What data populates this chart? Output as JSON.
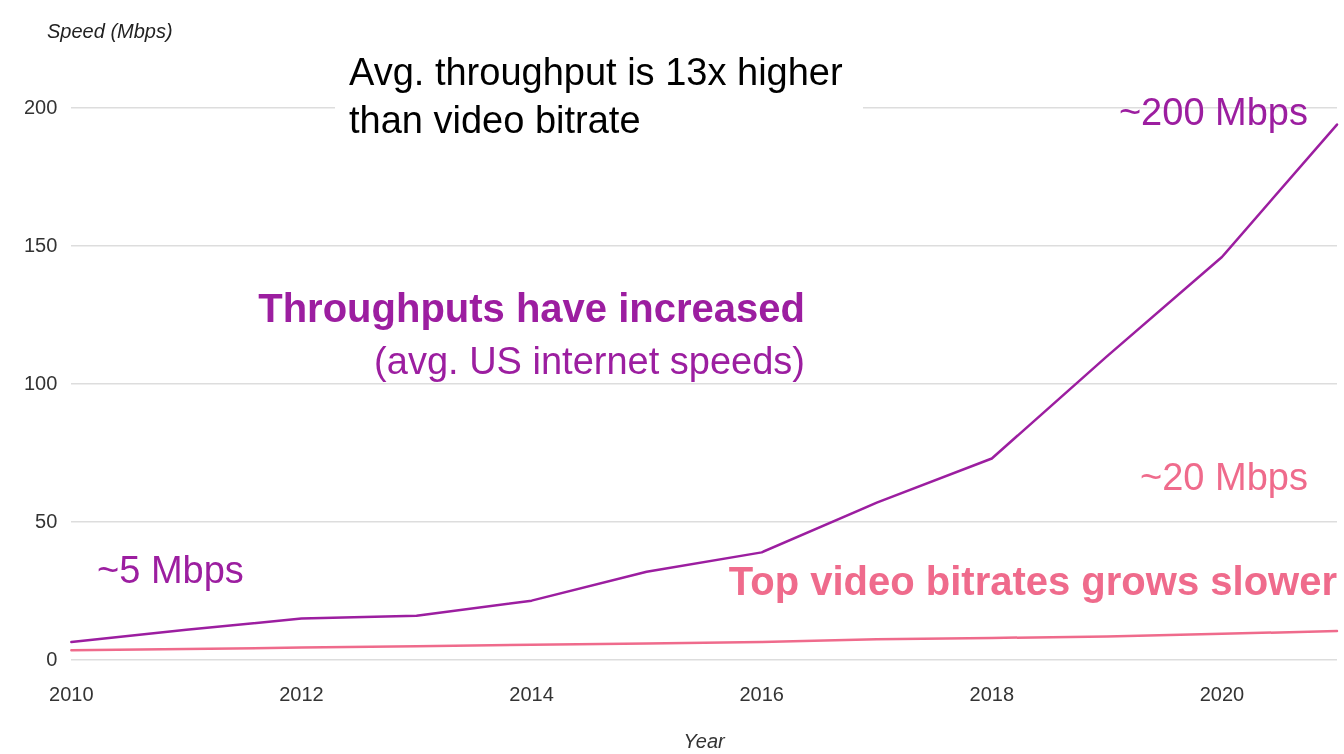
{
  "chart_data": {
    "type": "line",
    "xlabel": "Year",
    "ylabel": "Speed (Mbps)",
    "x": [
      2010,
      2011,
      2012,
      2013,
      2014,
      2015,
      2016,
      2017,
      2018,
      2019,
      2020,
      2021
    ],
    "xlim": [
      2010,
      2021
    ],
    "xticks": [
      2010,
      2012,
      2014,
      2016,
      2018,
      2020
    ],
    "ylim": [
      0,
      200
    ],
    "yticks": [
      0,
      50,
      100,
      150,
      200
    ],
    "grid": "y",
    "legend": false,
    "series": [
      {
        "name": "Throughputs have increased\n(avg. US internet speeds)",
        "color": "#9c1ea0",
        "values": [
          6.5,
          11,
          15,
          16,
          21.5,
          32,
          39,
          57,
          73,
          110,
          146,
          194
        ]
      },
      {
        "name": "Top video bitrates grows slower",
        "color": "#ef6b8c",
        "values": [
          3.5,
          4,
          4.5,
          5,
          5.5,
          6,
          6.5,
          7.5,
          8,
          8.5,
          9.5,
          10.5
        ]
      }
    ],
    "annotations": [
      "Avg. throughput is 13x higher than video bitrate",
      "~200 Mbps",
      "~20 Mbps",
      "~5 Mbps"
    ]
  }
}
